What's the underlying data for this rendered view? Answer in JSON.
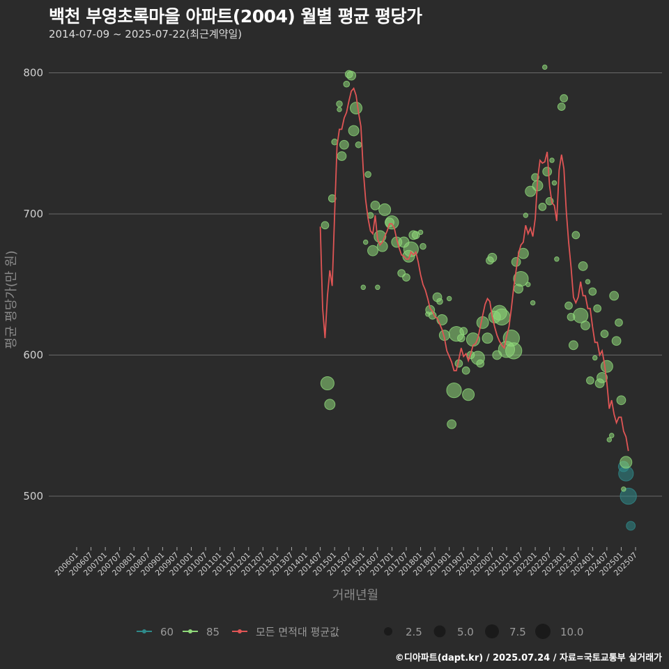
{
  "title": "백천 부영초록마을 아파트(2004) 월별 평균 평당가",
  "subtitle": "2014-07-09 ~ 2025-07-22(최근계약일)",
  "caption": "©디아파트(dapt.kr) / 2025.07.24 / 자료=국토교통부 실거래가",
  "colors": {
    "background": "#2b2b2b",
    "grid": "#6a6a6a",
    "area60": "#2f8a8a",
    "area85": "#8fd97a",
    "avg_line": "#e05555"
  },
  "chart_data": {
    "type": "scatter",
    "title": "백천 부영초록마을 아파트(2004) 월별 평균 평당가",
    "subtitle": "2014-07-09 ~ 2025-07-22(최근계약일)",
    "xlabel": "거래년월",
    "ylabel": "평균 평당가(만 원)",
    "ylim": [
      465,
      815
    ],
    "yticks": [
      500,
      600,
      700,
      800
    ],
    "xticks": [
      "200601",
      "200607",
      "200701",
      "200707",
      "200801",
      "200807",
      "200901",
      "200907",
      "201001",
      "201007",
      "201101",
      "201107",
      "201201",
      "201207",
      "201301",
      "201307",
      "201401",
      "201407",
      "201501",
      "201507",
      "201601",
      "201607",
      "201701",
      "201707",
      "201801",
      "201807",
      "201901",
      "201907",
      "202001",
      "202007",
      "202101",
      "202107",
      "202201",
      "202207",
      "202301",
      "202307",
      "202401",
      "202407",
      "202501",
      "202507"
    ],
    "grid": true,
    "legend": {
      "placement": "bottom",
      "series_items": [
        {
          "label": "60",
          "color": "#2f8a8a"
        },
        {
          "label": "85",
          "color": "#8fd97a"
        },
        {
          "label": "모든 면적대 평균값",
          "color": "#e05555"
        }
      ],
      "size_items": [
        "2.5",
        "5.0",
        "7.5",
        "10.0"
      ]
    },
    "series": [
      {
        "name": "60",
        "points": [
          [
            "2025-02",
            521,
            5
          ],
          [
            "2025-03",
            516,
            8
          ],
          [
            "2025-04",
            500,
            9
          ],
          [
            "2025-05",
            479,
            4
          ]
        ]
      },
      {
        "name": "85",
        "points": [
          [
            "2014-09",
            692,
            3
          ],
          [
            "2014-10",
            580,
            7
          ],
          [
            "2014-11",
            565,
            5
          ],
          [
            "2014-12",
            711,
            3
          ],
          [
            "2015-01",
            751,
            2
          ],
          [
            "2015-03",
            774,
            1
          ],
          [
            "2015-03",
            778,
            2
          ],
          [
            "2015-04",
            741,
            4
          ],
          [
            "2015-05",
            749,
            4
          ],
          [
            "2015-06",
            792,
            2
          ],
          [
            "2015-07",
            799,
            3
          ],
          [
            "2015-08",
            798,
            4
          ],
          [
            "2015-09",
            759,
            5
          ],
          [
            "2015-10",
            775,
            6
          ],
          [
            "2015-11",
            749,
            2
          ],
          [
            "2016-01",
            648,
            1
          ],
          [
            "2016-02",
            680,
            1
          ],
          [
            "2016-03",
            728,
            2
          ],
          [
            "2016-04",
            699,
            2
          ],
          [
            "2016-05",
            674,
            5
          ],
          [
            "2016-06",
            706,
            4
          ],
          [
            "2016-07",
            648,
            1
          ],
          [
            "2016-08",
            684,
            6
          ],
          [
            "2016-09",
            677,
            5
          ],
          [
            "2016-10",
            703,
            6
          ],
          [
            "2016-12",
            694,
            4
          ],
          [
            "2017-01",
            694,
            7
          ],
          [
            "2017-03",
            680,
            5
          ],
          [
            "2017-05",
            658,
            3
          ],
          [
            "2017-06",
            680,
            5
          ],
          [
            "2017-07",
            655,
            3
          ],
          [
            "2017-08",
            670,
            6
          ],
          [
            "2017-09",
            675,
            8
          ],
          [
            "2017-10",
            685,
            4
          ],
          [
            "2017-11",
            685,
            3
          ],
          [
            "2018-01",
            687,
            1
          ],
          [
            "2018-02",
            677,
            2
          ],
          [
            "2018-04",
            629,
            1
          ],
          [
            "2018-05",
            632,
            4
          ],
          [
            "2018-06",
            628,
            3
          ],
          [
            "2018-08",
            641,
            4
          ],
          [
            "2018-09",
            638,
            2
          ],
          [
            "2018-10",
            625,
            5
          ],
          [
            "2018-11",
            614,
            5
          ],
          [
            "2019-01",
            640,
            1
          ],
          [
            "2019-02",
            551,
            4
          ],
          [
            "2019-03",
            575,
            8
          ],
          [
            "2019-04",
            615,
            8
          ],
          [
            "2019-05",
            594,
            3
          ],
          [
            "2019-06",
            612,
            3
          ],
          [
            "2019-07",
            617,
            3
          ],
          [
            "2019-08",
            589,
            3
          ],
          [
            "2019-09",
            572,
            6
          ],
          [
            "2019-10",
            600,
            3
          ],
          [
            "2019-11",
            611,
            7
          ],
          [
            "2020-01",
            598,
            7
          ],
          [
            "2020-02",
            594,
            3
          ],
          [
            "2020-03",
            623,
            6
          ],
          [
            "2020-05",
            612,
            5
          ],
          [
            "2020-06",
            667,
            3
          ],
          [
            "2020-07",
            669,
            4
          ],
          [
            "2020-08",
            627,
            6
          ],
          [
            "2020-09",
            600,
            4
          ],
          [
            "2020-10",
            630,
            8
          ],
          [
            "2020-11",
            627,
            9
          ],
          [
            "2021-01",
            604,
            9
          ],
          [
            "2021-03",
            612,
            9
          ],
          [
            "2021-04",
            603,
            9
          ],
          [
            "2021-05",
            666,
            4
          ],
          [
            "2021-06",
            647,
            4
          ],
          [
            "2021-07",
            654,
            8
          ],
          [
            "2021-08",
            672,
            5
          ],
          [
            "2021-09",
            699,
            1
          ],
          [
            "2021-10",
            650,
            1
          ],
          [
            "2021-11",
            716,
            5
          ],
          [
            "2021-12",
            637,
            1
          ],
          [
            "2022-01",
            726,
            3
          ],
          [
            "2022-02",
            720,
            5
          ],
          [
            "2022-04",
            705,
            3
          ],
          [
            "2022-05",
            804,
            1
          ],
          [
            "2022-06",
            730,
            4
          ],
          [
            "2022-07",
            709,
            3
          ],
          [
            "2022-08",
            738,
            1
          ],
          [
            "2022-09",
            722,
            1
          ],
          [
            "2022-10",
            668,
            1
          ],
          [
            "2022-12",
            776,
            3
          ],
          [
            "2023-01",
            782,
            3
          ],
          [
            "2023-03",
            635,
            3
          ],
          [
            "2023-04",
            627,
            3
          ],
          [
            "2023-05",
            607,
            4
          ],
          [
            "2023-06",
            685,
            3
          ],
          [
            "2023-08",
            628,
            8
          ],
          [
            "2023-09",
            663,
            4
          ],
          [
            "2023-10",
            621,
            4
          ],
          [
            "2023-11",
            652,
            1
          ],
          [
            "2023-12",
            582,
            3
          ],
          [
            "2024-01",
            645,
            3
          ],
          [
            "2024-02",
            598,
            1
          ],
          [
            "2024-03",
            633,
            3
          ],
          [
            "2024-04",
            580,
            4
          ],
          [
            "2024-05",
            584,
            5
          ],
          [
            "2024-06",
            615,
            3
          ],
          [
            "2024-07",
            592,
            6
          ],
          [
            "2024-08",
            540,
            1
          ],
          [
            "2024-09",
            543,
            1
          ],
          [
            "2024-10",
            642,
            4
          ],
          [
            "2024-11",
            610,
            4
          ],
          [
            "2024-12",
            623,
            3
          ],
          [
            "2025-01",
            568,
            4
          ],
          [
            "2025-02",
            505,
            1
          ],
          [
            "2025-03",
            524,
            6
          ]
        ]
      }
    ],
    "average_line": {
      "name": "모든 면적대 평균값",
      "points": [
        [
          "2014-07",
          691
        ],
        [
          "2014-08",
          633
        ],
        [
          "2014-09",
          612
        ],
        [
          "2014-10",
          642
        ],
        [
          "2014-11",
          660
        ],
        [
          "2014-12",
          649
        ],
        [
          "2015-01",
          700
        ],
        [
          "2015-02",
          748
        ],
        [
          "2015-03",
          760
        ],
        [
          "2015-04",
          760
        ],
        [
          "2015-05",
          768
        ],
        [
          "2015-06",
          772
        ],
        [
          "2015-07",
          780
        ],
        [
          "2015-08",
          787
        ],
        [
          "2015-09",
          789
        ],
        [
          "2015-10",
          784
        ],
        [
          "2015-11",
          772
        ],
        [
          "2015-12",
          762
        ],
        [
          "2016-01",
          731
        ],
        [
          "2016-02",
          710
        ],
        [
          "2016-03",
          697
        ],
        [
          "2016-04",
          688
        ],
        [
          "2016-05",
          686
        ],
        [
          "2016-06",
          699
        ],
        [
          "2016-07",
          682
        ],
        [
          "2016-08",
          678
        ],
        [
          "2016-09",
          680
        ],
        [
          "2016-10",
          684
        ],
        [
          "2016-11",
          688
        ],
        [
          "2016-12",
          693
        ],
        [
          "2017-01",
          693
        ],
        [
          "2017-02",
          690
        ],
        [
          "2017-03",
          682
        ],
        [
          "2017-04",
          676
        ],
        [
          "2017-05",
          671
        ],
        [
          "2017-06",
          670
        ],
        [
          "2017-07",
          668
        ],
        [
          "2017-08",
          668
        ],
        [
          "2017-09",
          673
        ],
        [
          "2017-10",
          671
        ],
        [
          "2017-11",
          673
        ],
        [
          "2017-12",
          666
        ],
        [
          "2018-01",
          657
        ],
        [
          "2018-02",
          650
        ],
        [
          "2018-03",
          646
        ],
        [
          "2018-04",
          640
        ],
        [
          "2018-05",
          633
        ],
        [
          "2018-06",
          631
        ],
        [
          "2018-07",
          627
        ],
        [
          "2018-08",
          626
        ],
        [
          "2018-09",
          622
        ],
        [
          "2018-10",
          618
        ],
        [
          "2018-11",
          612
        ],
        [
          "2018-12",
          603
        ],
        [
          "2019-01",
          599
        ],
        [
          "2019-02",
          595
        ],
        [
          "2019-03",
          589
        ],
        [
          "2019-04",
          589
        ],
        [
          "2019-05",
          597
        ],
        [
          "2019-06",
          605
        ],
        [
          "2019-07",
          599
        ],
        [
          "2019-08",
          601
        ],
        [
          "2019-09",
          596
        ],
        [
          "2019-10",
          601
        ],
        [
          "2019-11",
          607
        ],
        [
          "2019-12",
          608
        ],
        [
          "2020-01",
          612
        ],
        [
          "2020-02",
          620
        ],
        [
          "2020-03",
          628
        ],
        [
          "2020-04",
          636
        ],
        [
          "2020-05",
          640
        ],
        [
          "2020-06",
          638
        ],
        [
          "2020-07",
          627
        ],
        [
          "2020-08",
          620
        ],
        [
          "2020-09",
          614
        ],
        [
          "2020-10",
          610
        ],
        [
          "2020-11",
          607
        ],
        [
          "2020-12",
          605
        ],
        [
          "2021-01",
          613
        ],
        [
          "2021-02",
          620
        ],
        [
          "2021-03",
          633
        ],
        [
          "2021-04",
          648
        ],
        [
          "2021-05",
          660
        ],
        [
          "2021-06",
          672
        ],
        [
          "2021-07",
          678
        ],
        [
          "2021-08",
          680
        ],
        [
          "2021-09",
          692
        ],
        [
          "2021-10",
          686
        ],
        [
          "2021-11",
          690
        ],
        [
          "2021-12",
          684
        ],
        [
          "2022-01",
          697
        ],
        [
          "2022-02",
          725
        ],
        [
          "2022-03",
          738
        ],
        [
          "2022-04",
          736
        ],
        [
          "2022-05",
          737
        ],
        [
          "2022-06",
          744
        ],
        [
          "2022-07",
          720
        ],
        [
          "2022-08",
          708
        ],
        [
          "2022-09",
          706
        ],
        [
          "2022-10",
          695
        ],
        [
          "2022-11",
          731
        ],
        [
          "2022-12",
          742
        ],
        [
          "2023-01",
          732
        ],
        [
          "2023-02",
          702
        ],
        [
          "2023-03",
          680
        ],
        [
          "2023-04",
          662
        ],
        [
          "2023-05",
          641
        ],
        [
          "2023-06",
          637
        ],
        [
          "2023-07",
          641
        ],
        [
          "2023-08",
          652
        ],
        [
          "2023-09",
          642
        ],
        [
          "2023-10",
          642
        ],
        [
          "2023-11",
          633
        ],
        [
          "2023-12",
          633
        ],
        [
          "2024-01",
          620
        ],
        [
          "2024-02",
          609
        ],
        [
          "2024-03",
          609
        ],
        [
          "2024-04",
          600
        ],
        [
          "2024-05",
          603
        ],
        [
          "2024-06",
          594
        ],
        [
          "2024-07",
          580
        ],
        [
          "2024-08",
          562
        ],
        [
          "2024-09",
          568
        ],
        [
          "2024-10",
          558
        ],
        [
          "2024-11",
          552
        ],
        [
          "2024-12",
          556
        ],
        [
          "2025-01",
          556
        ],
        [
          "2025-02",
          546
        ],
        [
          "2025-03",
          542
        ],
        [
          "2025-04",
          532
        ]
      ]
    }
  }
}
